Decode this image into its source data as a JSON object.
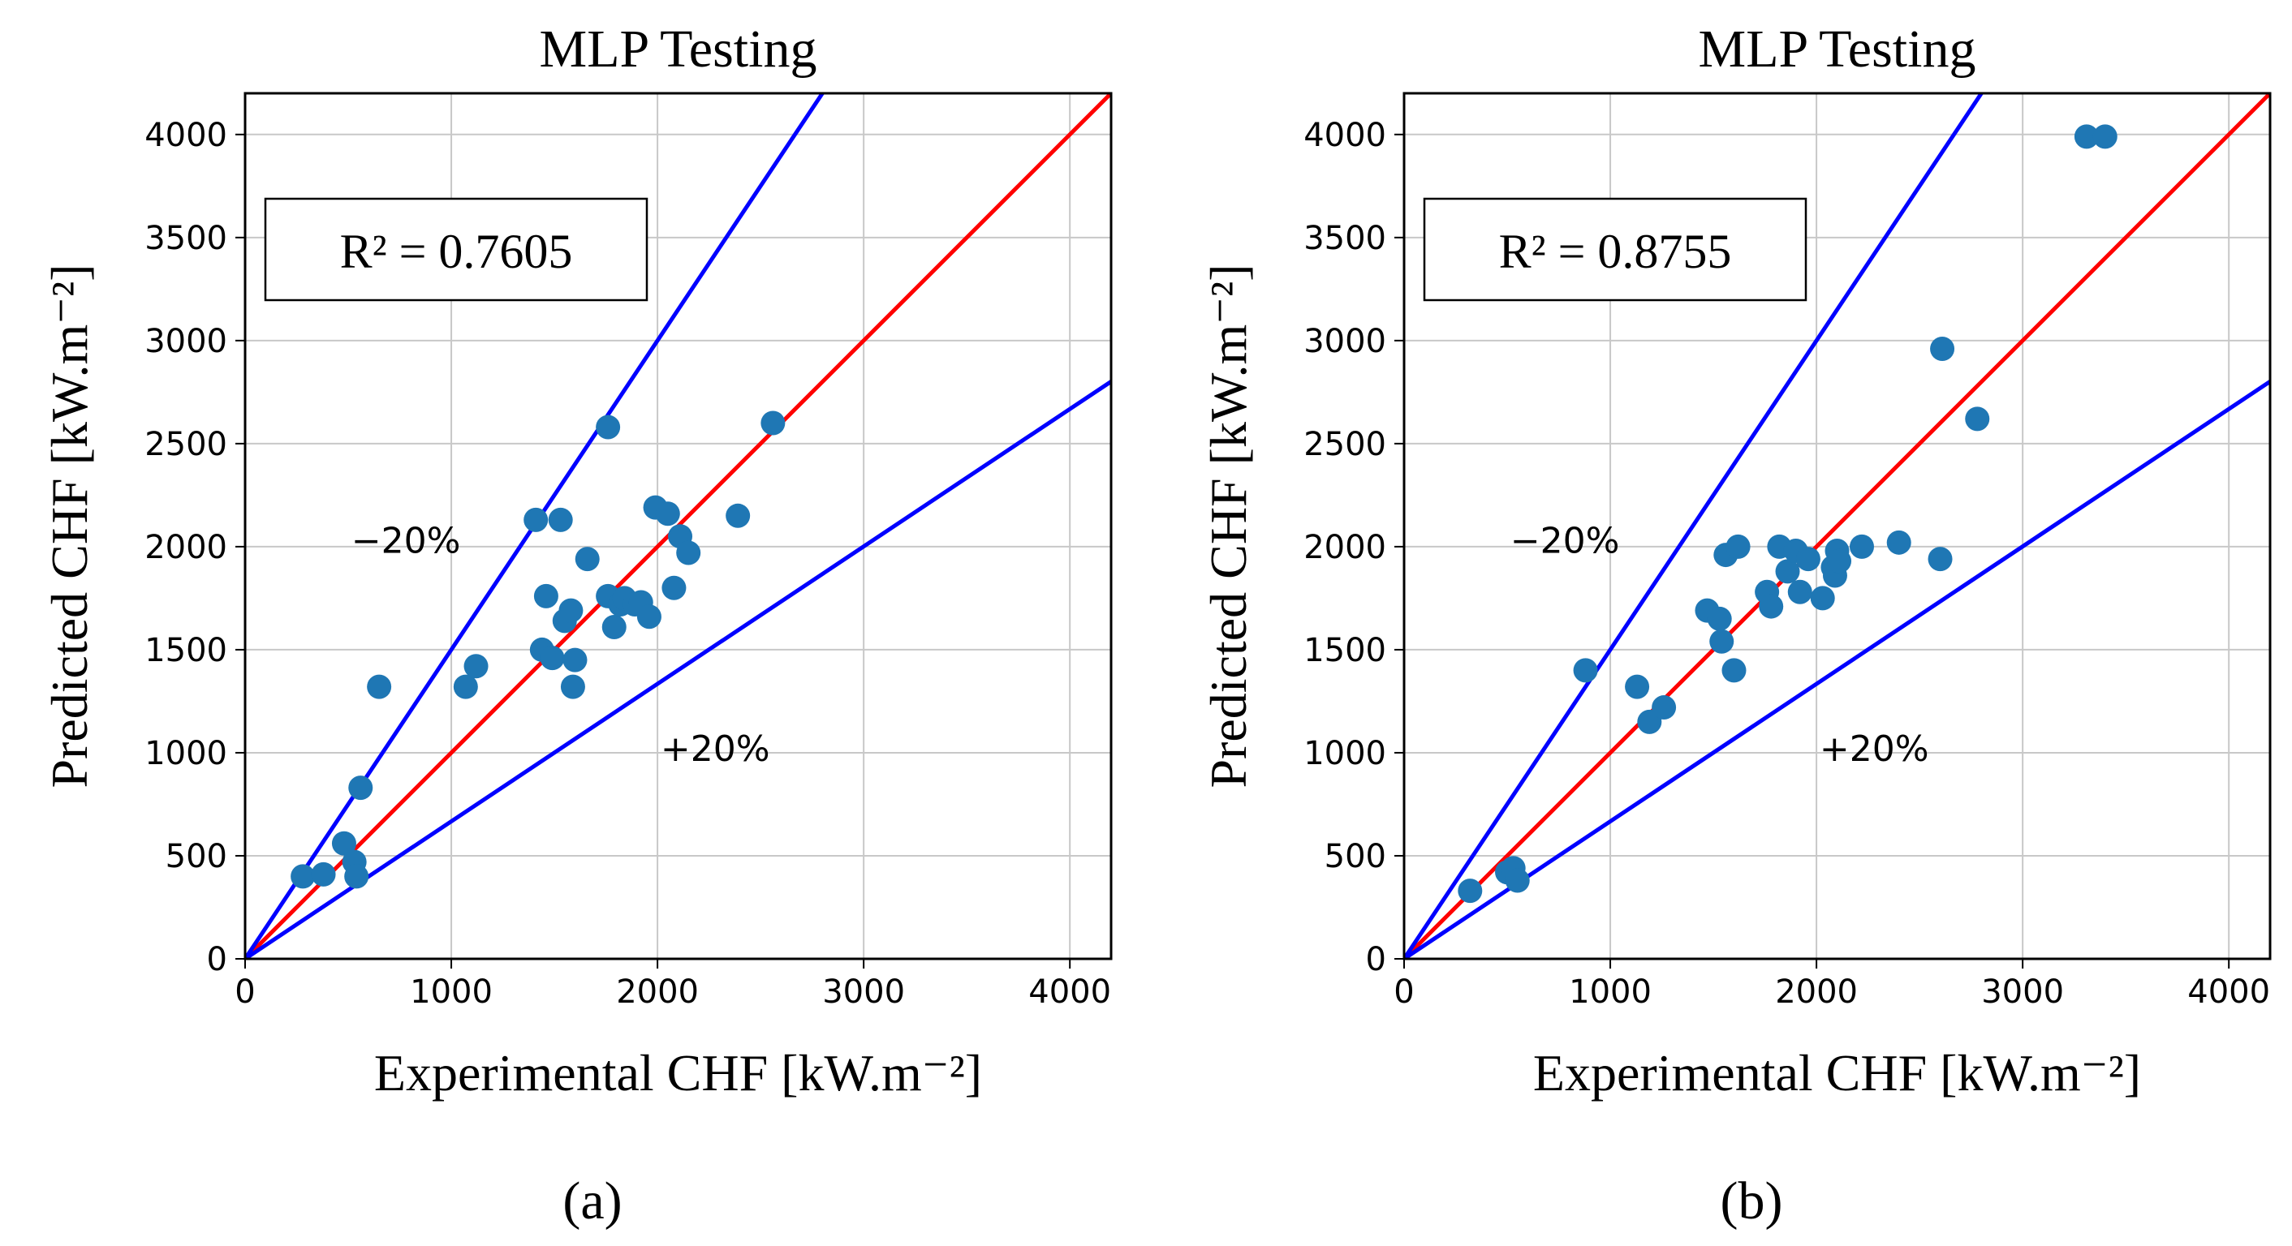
{
  "colors": {
    "points": "#1f77b4",
    "ideal_line": "#ff0000",
    "bound_lines": "#0000ff",
    "grid": "#c8c8c8"
  },
  "chart_data": [
    {
      "type": "scatter",
      "title": "MLP Testing",
      "xlabel": "Experimental CHF [kW.m⁻²]",
      "ylabel": "Predicted CHF [kW.m⁻²]",
      "xlim": [
        0,
        4200
      ],
      "ylim": [
        0,
        4200
      ],
      "xticks": [
        0,
        1000,
        2000,
        3000,
        4000
      ],
      "yticks": [
        0,
        500,
        1000,
        1500,
        2000,
        2500,
        3000,
        3500,
        4000
      ],
      "grid": true,
      "r2_label": "R² = 0.7605",
      "annotations": [
        "−20%",
        "+20%"
      ],
      "panel_label": "(a)",
      "reference_lines": [
        {
          "name": "y = x",
          "slope": 1.0
        },
        {
          "name": "−20%",
          "slope": 1.5
        },
        {
          "name": "+20%",
          "slope": 0.667
        }
      ],
      "points": [
        [
          280,
          400
        ],
        [
          380,
          410
        ],
        [
          480,
          560
        ],
        [
          530,
          470
        ],
        [
          540,
          400
        ],
        [
          560,
          830
        ],
        [
          650,
          1320
        ],
        [
          1070,
          1320
        ],
        [
          1120,
          1420
        ],
        [
          1410,
          2130
        ],
        [
          1440,
          1500
        ],
        [
          1460,
          1760
        ],
        [
          1490,
          1460
        ],
        [
          1530,
          2130
        ],
        [
          1550,
          1640
        ],
        [
          1580,
          1690
        ],
        [
          1590,
          1320
        ],
        [
          1600,
          1450
        ],
        [
          1660,
          1940
        ],
        [
          1760,
          1760
        ],
        [
          1760,
          2580
        ],
        [
          1790,
          1610
        ],
        [
          1820,
          1720
        ],
        [
          1840,
          1750
        ],
        [
          1890,
          1720
        ],
        [
          1920,
          1730
        ],
        [
          1960,
          1660
        ],
        [
          1990,
          2190
        ],
        [
          2050,
          2160
        ],
        [
          2080,
          1800
        ],
        [
          2110,
          2050
        ],
        [
          2150,
          1970
        ],
        [
          2390,
          2150
        ],
        [
          2560,
          2600
        ]
      ]
    },
    {
      "type": "scatter",
      "title": "MLP Testing",
      "xlabel": "Experimental CHF [kW.m⁻²]",
      "ylabel": "Predicted CHF [kW.m⁻²]",
      "xlim": [
        0,
        4200
      ],
      "ylim": [
        0,
        4200
      ],
      "xticks": [
        0,
        1000,
        2000,
        3000,
        4000
      ],
      "yticks": [
        0,
        500,
        1000,
        1500,
        2000,
        2500,
        3000,
        3500,
        4000
      ],
      "grid": true,
      "r2_label": "R² = 0.8755",
      "annotations": [
        "−20%",
        "+20%"
      ],
      "panel_label": "(b)",
      "reference_lines": [
        {
          "name": "y = x",
          "slope": 1.0
        },
        {
          "name": "−20%",
          "slope": 1.5
        },
        {
          "name": "+20%",
          "slope": 0.667
        }
      ],
      "points": [
        [
          320,
          330
        ],
        [
          500,
          420
        ],
        [
          530,
          440
        ],
        [
          550,
          380
        ],
        [
          880,
          1400
        ],
        [
          1130,
          1320
        ],
        [
          1190,
          1150
        ],
        [
          1260,
          1220
        ],
        [
          1470,
          1690
        ],
        [
          1530,
          1650
        ],
        [
          1540,
          1540
        ],
        [
          1560,
          1960
        ],
        [
          1600,
          1400
        ],
        [
          1620,
          2000
        ],
        [
          1760,
          1780
        ],
        [
          1780,
          1710
        ],
        [
          1820,
          2000
        ],
        [
          1860,
          1880
        ],
        [
          1900,
          1980
        ],
        [
          1920,
          1780
        ],
        [
          1960,
          1940
        ],
        [
          2030,
          1750
        ],
        [
          2080,
          1900
        ],
        [
          2090,
          1860
        ],
        [
          2100,
          1980
        ],
        [
          2110,
          1930
        ],
        [
          2220,
          2000
        ],
        [
          2400,
          2020
        ],
        [
          2600,
          1940
        ],
        [
          2610,
          2960
        ],
        [
          2780,
          2620
        ],
        [
          3310,
          3990
        ],
        [
          3400,
          3990
        ]
      ]
    }
  ]
}
